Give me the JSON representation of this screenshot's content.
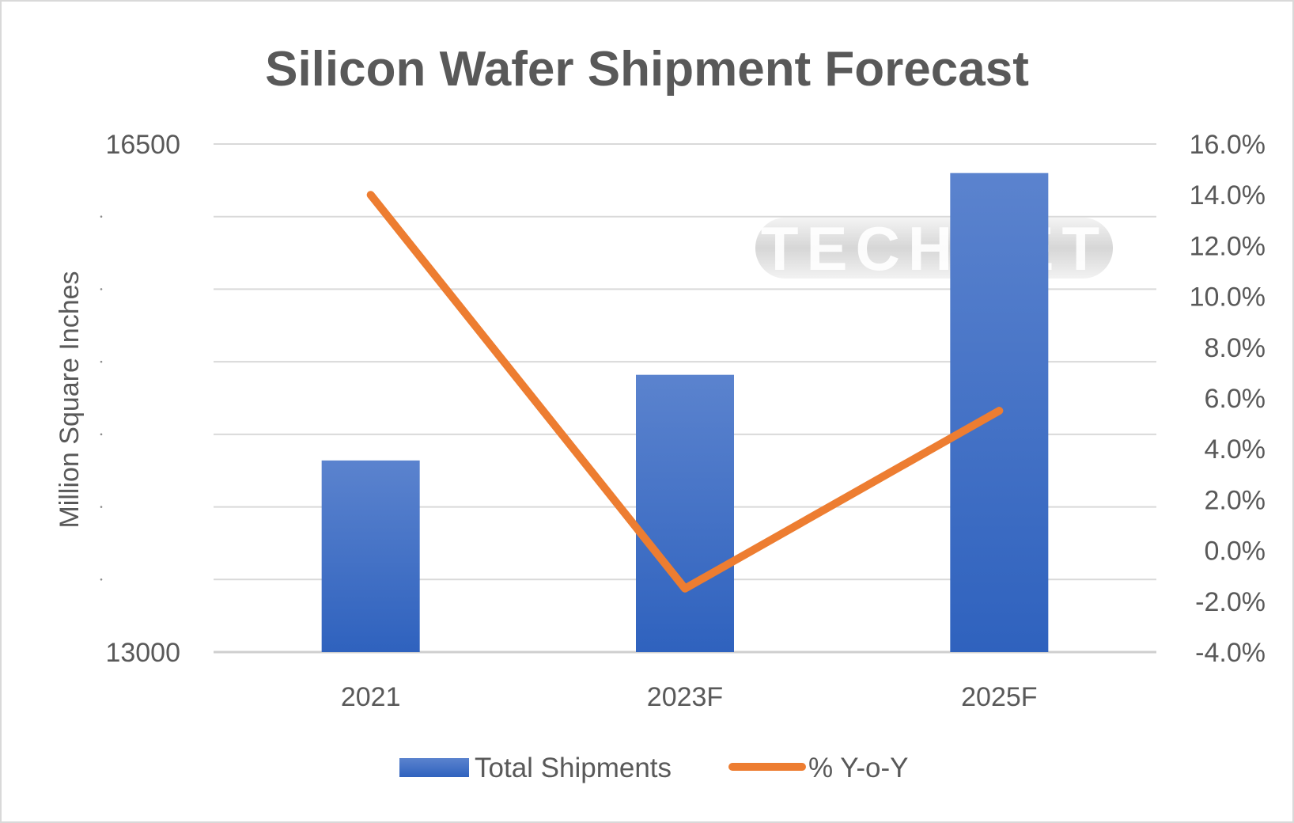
{
  "chart_data": {
    "type": "bar",
    "title": "Silicon Wafer Shipment Forecast",
    "xlabel": "",
    "ylabel": "Million Square Inches",
    "categories": [
      "2021",
      "2023F",
      "2025F"
    ],
    "series": [
      {
        "name": "Total Shipments",
        "type": "bar",
        "axis": "left",
        "values": [
          14320,
          14910,
          16300
        ],
        "color": "#4472C4"
      },
      {
        "name": "% Y-o-Y",
        "type": "line",
        "axis": "right",
        "values": [
          14.0,
          -1.5,
          5.5
        ],
        "color": "#ED7D31"
      }
    ],
    "ylim": [
      13000,
      16500
    ],
    "y_ticks_left": [
      "16500",
      "13000"
    ],
    "y2lim": [
      -4.0,
      16.0
    ],
    "y_ticks_right": [
      "16.0%",
      "14.0%",
      "12.0%",
      "10.0%",
      "8.0%",
      "6.0%",
      "4.0%",
      "2.0%",
      "0.0%",
      "-2.0%",
      "-4.0%"
    ],
    "grid": true,
    "legend_position": "bottom",
    "watermark": "TECHCET",
    "colors": {
      "bar": "#4472C4",
      "bar_top": "#5B83CE",
      "bar_bottom": "#2F62BE",
      "line": "#ED7D31",
      "grid": "#D9D9D9",
      "text": "#595959"
    }
  }
}
